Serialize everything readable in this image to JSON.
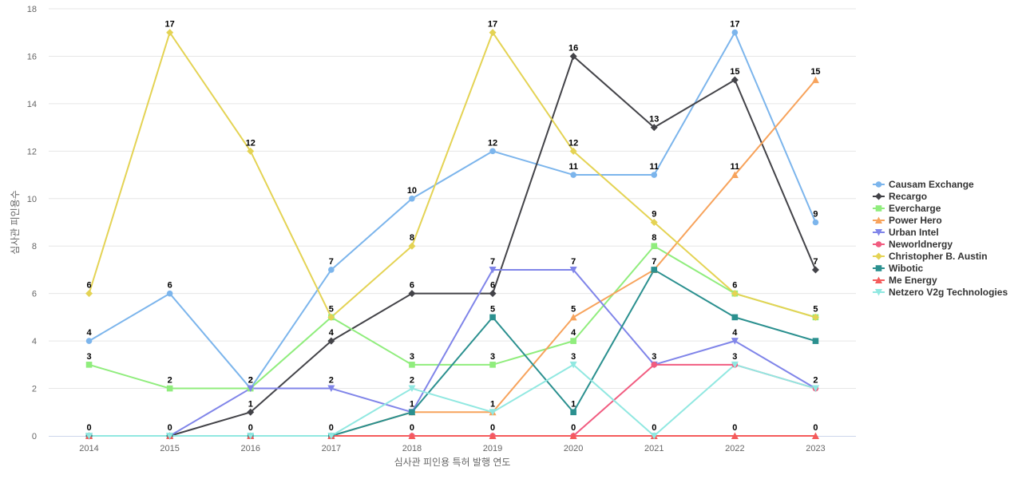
{
  "chart_data": {
    "type": "line",
    "title": "",
    "xlabel": "심사관 피인용 특허 발행 연도",
    "ylabel": "심사관 피인용수",
    "x": [
      "2014",
      "2015",
      "2016",
      "2017",
      "2018",
      "2019",
      "2020",
      "2021",
      "2022",
      "2023"
    ],
    "ylim": [
      0,
      18
    ],
    "yticks": [
      0,
      2,
      4,
      6,
      8,
      10,
      12,
      14,
      16,
      18
    ],
    "grid": true,
    "legend_position": "right",
    "data_labels": true,
    "series": [
      {
        "name": "Causam Exchange",
        "color": "#7cb5ec",
        "marker": "circle",
        "values": [
          4,
          6,
          2,
          7,
          10,
          12,
          11,
          11,
          17,
          9
        ]
      },
      {
        "name": "Recargo",
        "color": "#434348",
        "marker": "diamond",
        "values": [
          0,
          0,
          1,
          4,
          6,
          6,
          16,
          13,
          15,
          7
        ]
      },
      {
        "name": "Evercharge",
        "color": "#90ed7d",
        "marker": "square",
        "values": [
          3,
          2,
          2,
          5,
          3,
          3,
          4,
          8,
          6,
          5
        ]
      },
      {
        "name": "Power Hero",
        "color": "#f7a35c",
        "marker": "triangle",
        "values": [
          0,
          0,
          0,
          0,
          1,
          1,
          5,
          7,
          11,
          15
        ]
      },
      {
        "name": "Urban Intel",
        "color": "#8085e9",
        "marker": "triangle-down",
        "values": [
          0,
          0,
          2,
          2,
          1,
          7,
          7,
          3,
          4,
          2
        ]
      },
      {
        "name": "Neworldnergy",
        "color": "#f15c80",
        "marker": "circle",
        "values": [
          0,
          0,
          0,
          0,
          0,
          0,
          0,
          3,
          3,
          2
        ]
      },
      {
        "name": "Christopher B. Austin",
        "color": "#e4d354",
        "marker": "diamond",
        "values": [
          6,
          17,
          12,
          5,
          8,
          17,
          12,
          9,
          6,
          5
        ]
      },
      {
        "name": "Wibotic",
        "color": "#2b908f",
        "marker": "square",
        "values": [
          0,
          0,
          0,
          0,
          1,
          5,
          1,
          7,
          5,
          4
        ]
      },
      {
        "name": "Me Energy",
        "color": "#f45b5b",
        "marker": "triangle",
        "values": [
          0,
          0,
          0,
          0,
          0,
          0,
          0,
          0,
          0,
          0
        ]
      },
      {
        "name": "Netzero V2g Technologies",
        "color": "#91e8e1",
        "marker": "triangle-down",
        "values": [
          0,
          0,
          0,
          0,
          2,
          1,
          3,
          0,
          3,
          2
        ]
      }
    ],
    "labels": [
      {
        "series": 0,
        "index": 0,
        "text": "4"
      },
      {
        "series": 0,
        "index": 1,
        "text": "6"
      },
      {
        "series": 0,
        "index": 2,
        "text": "2"
      },
      {
        "series": 0,
        "index": 3,
        "text": "7"
      },
      {
        "series": 0,
        "index": 4,
        "text": "10"
      },
      {
        "series": 0,
        "index": 5,
        "text": "12"
      },
      {
        "series": 0,
        "index": 6,
        "text": "11"
      },
      {
        "series": 0,
        "index": 7,
        "text": "11"
      },
      {
        "series": 0,
        "index": 8,
        "text": "17"
      },
      {
        "series": 0,
        "index": 9,
        "text": "9"
      },
      {
        "series": 1,
        "index": 2,
        "text": "1"
      },
      {
        "series": 1,
        "index": 3,
        "text": "4"
      },
      {
        "series": 1,
        "index": 4,
        "text": "6"
      },
      {
        "series": 1,
        "index": 5,
        "text": "6"
      },
      {
        "series": 1,
        "index": 6,
        "text": "16"
      },
      {
        "series": 1,
        "index": 7,
        "text": "13"
      },
      {
        "series": 1,
        "index": 8,
        "text": "15"
      },
      {
        "series": 1,
        "index": 9,
        "text": "7"
      },
      {
        "series": 2,
        "index": 0,
        "text": "3"
      },
      {
        "series": 2,
        "index": 1,
        "text": "2"
      },
      {
        "series": 2,
        "index": 3,
        "text": "5"
      },
      {
        "series": 2,
        "index": 4,
        "text": "3"
      },
      {
        "series": 2,
        "index": 5,
        "text": "3"
      },
      {
        "series": 2,
        "index": 6,
        "text": "4"
      },
      {
        "series": 2,
        "index": 7,
        "text": "8"
      },
      {
        "series": 2,
        "index": 8,
        "text": "6"
      },
      {
        "series": 2,
        "index": 9,
        "text": "5"
      },
      {
        "series": 3,
        "index": 5,
        "text": "1"
      },
      {
        "series": 3,
        "index": 6,
        "text": "5"
      },
      {
        "series": 3,
        "index": 7,
        "text": "7"
      },
      {
        "series": 3,
        "index": 8,
        "text": "11"
      },
      {
        "series": 3,
        "index": 9,
        "text": "15"
      },
      {
        "series": 4,
        "index": 2,
        "text": "2"
      },
      {
        "series": 4,
        "index": 3,
        "text": "2"
      },
      {
        "series": 4,
        "index": 5,
        "text": "7"
      },
      {
        "series": 4,
        "index": 6,
        "text": "7"
      },
      {
        "series": 4,
        "index": 7,
        "text": "3"
      },
      {
        "series": 4,
        "index": 8,
        "text": "4"
      },
      {
        "series": 4,
        "index": 9,
        "text": "2"
      },
      {
        "series": 6,
        "index": 0,
        "text": "6"
      },
      {
        "series": 6,
        "index": 1,
        "text": "17"
      },
      {
        "series": 6,
        "index": 2,
        "text": "12"
      },
      {
        "series": 6,
        "index": 4,
        "text": "8"
      },
      {
        "series": 6,
        "index": 5,
        "text": "17"
      },
      {
        "series": 6,
        "index": 6,
        "text": "12"
      },
      {
        "series": 6,
        "index": 7,
        "text": "9"
      },
      {
        "series": 7,
        "index": 4,
        "text": "1"
      },
      {
        "series": 7,
        "index": 5,
        "text": "5"
      },
      {
        "series": 7,
        "index": 6,
        "text": "1"
      },
      {
        "series": 9,
        "index": 4,
        "text": "2"
      },
      {
        "series": 9,
        "index": 6,
        "text": "3"
      },
      {
        "series": 9,
        "index": 8,
        "text": "3"
      },
      {
        "series": 8,
        "index": 0,
        "text": "0"
      },
      {
        "series": 8,
        "index": 1,
        "text": "0"
      },
      {
        "series": 8,
        "index": 2,
        "text": "0"
      },
      {
        "series": 8,
        "index": 3,
        "text": "0"
      },
      {
        "series": 8,
        "index": 4,
        "text": "0"
      },
      {
        "series": 8,
        "index": 5,
        "text": "0"
      },
      {
        "series": 8,
        "index": 6,
        "text": "0"
      },
      {
        "series": 8,
        "index": 7,
        "text": "0"
      },
      {
        "series": 8,
        "index": 8,
        "text": "0"
      },
      {
        "series": 8,
        "index": 9,
        "text": "0"
      }
    ]
  }
}
